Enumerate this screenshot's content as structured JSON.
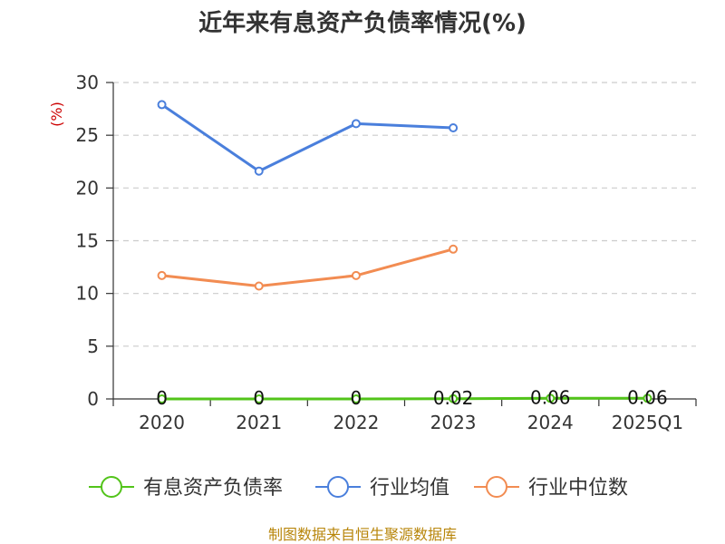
{
  "chart_data": {
    "type": "line",
    "title": "近年来有息资产负债率情况(%)",
    "y_unit": "(%)",
    "categories": [
      "2020",
      "2021",
      "2022",
      "2023",
      "2024",
      "2025Q1"
    ],
    "ylim": [
      0,
      30
    ],
    "y_ticks": [
      0,
      5,
      10,
      15,
      20,
      25,
      30
    ],
    "grid": true,
    "legend_position": "bottom",
    "series": [
      {
        "name": "有息资产负债率",
        "color": "#52c41a",
        "values": [
          0,
          0,
          0,
          0.02,
          0.06,
          0.06
        ],
        "labels": [
          "0",
          "0",
          "0",
          "0.02",
          "0.06",
          "0.06"
        ]
      },
      {
        "name": "行业均值",
        "color": "#4a7fdc",
        "values": [
          27.9,
          21.6,
          26.1,
          25.7,
          null,
          null
        ]
      },
      {
        "name": "行业中位数",
        "color": "#f28c52",
        "values": [
          11.7,
          10.7,
          11.7,
          14.2,
          null,
          null
        ]
      }
    ]
  },
  "source": "制图数据来自恒生聚源数据库"
}
